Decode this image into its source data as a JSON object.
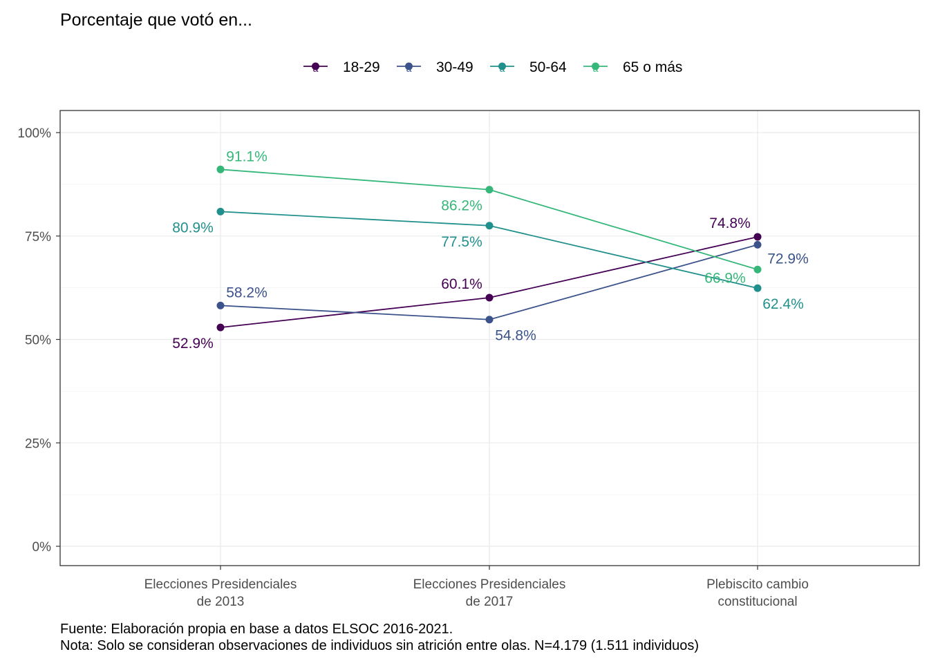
{
  "chart_data": {
    "type": "line",
    "title": "Porcentaje que votó en...",
    "categories": [
      [
        "Elecciones Presidenciales",
        "de 2013"
      ],
      [
        "Elecciones Presidenciales",
        "de 2017"
      ],
      [
        "Plebiscito cambio",
        "constitucional"
      ]
    ],
    "ylim": [
      0,
      1
    ],
    "yticks": [
      {
        "value": 0,
        "label": "0%"
      },
      {
        "value": 0.25,
        "label": "25%"
      },
      {
        "value": 0.5,
        "label": "50%"
      },
      {
        "value": 0.75,
        "label": "75%"
      },
      {
        "value": 1.0,
        "label": "100%"
      }
    ],
    "grid": true,
    "legend": "top",
    "series": [
      {
        "name": "18-29",
        "color": "#440154",
        "values": [
          0.529,
          0.601,
          0.748
        ],
        "labels": [
          "52.9%",
          "60.1%",
          "74.8%"
        ]
      },
      {
        "name": "30-49",
        "color": "#3B528B",
        "values": [
          0.582,
          0.548,
          0.729
        ],
        "labels": [
          "58.2%",
          "54.8%",
          "72.9%"
        ]
      },
      {
        "name": "50-64",
        "color": "#21908C",
        "values": [
          0.809,
          0.775,
          0.624
        ],
        "labels": [
          "80.9%",
          "77.5%",
          "62.4%"
        ]
      },
      {
        "name": "65 o más",
        "color": "#35B779",
        "values": [
          0.911,
          0.862,
          0.669
        ],
        "labels": [
          "91.1%",
          "86.2%",
          "66.9%"
        ]
      }
    ],
    "caption": [
      "Fuente: Elaboración propia en base a datos ELSOC 2016-2021.",
      "Nota: Solo se consideran observaciones de individuos sin atrición entre olas. N=4.179 (1.511 individuos)"
    ]
  }
}
